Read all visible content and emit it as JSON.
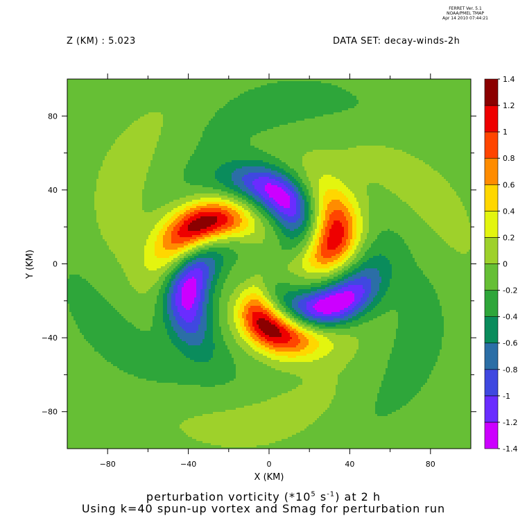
{
  "header": {
    "ferret_lines": [
      "FERRET Ver. 5.1",
      "NOAA/PMEL TMAP",
      "Apr 14 2010 07:44:21"
    ],
    "z_label": "Z (KM) : 5.023",
    "dataset_label": "DATA SET: decay-winds-2h"
  },
  "footer": {
    "title_prefix": "perturbation vorticity (*10",
    "title_exp1": "5",
    "title_mid": " s",
    "title_exp2": "-1",
    "title_suffix": ") at 2 h",
    "subtitle": "Using k=40 spun-up vortex and Smag for perturbation run"
  },
  "chart_data": {
    "type": "heatmap",
    "subtype": "filled contour",
    "xlabel": "X (KM)",
    "ylabel": "Y (KM)",
    "xlim": [
      -100,
      100
    ],
    "ylim": [
      -100,
      100
    ],
    "xticks": [
      -80,
      -40,
      0,
      40,
      80
    ],
    "yticks": [
      -80,
      -40,
      0,
      40,
      80
    ],
    "colorbar": {
      "levels": [
        -1.4,
        -1.2,
        -1,
        -0.8,
        -0.6,
        -0.4,
        -0.2,
        0,
        0.2,
        0.4,
        0.6,
        0.8,
        1,
        1.2,
        1.4
      ],
      "labels": [
        "-1.4",
        "-1.2",
        "-1",
        "-0.8",
        "-0.6",
        "-0.4",
        "-0.2",
        "0",
        "0.2",
        "0.4",
        "0.6",
        "0.8",
        "1",
        "1.2",
        "1.4"
      ],
      "colors": [
        "#cc00ff",
        "#6a2cff",
        "#3f48e0",
        "#2b6ea6",
        "#0a8c5c",
        "#2ea63a",
        "#66bf35",
        "#9ed12b",
        "#e3f50f",
        "#ffd700",
        "#ff8c00",
        "#ff4500",
        "#ee0000",
        "#8b0000"
      ]
    },
    "features": [
      {
        "kind": "maximum",
        "x": -33,
        "y": 22,
        "peak": 1.3
      },
      {
        "kind": "maximum",
        "x": 33,
        "y": 15,
        "peak": 1.1
      },
      {
        "kind": "maximum",
        "x": 0,
        "y": -35,
        "peak": 1.3
      },
      {
        "kind": "minimum",
        "x": 5,
        "y": 37,
        "peak": -1.1
      },
      {
        "kind": "minimum",
        "x": -40,
        "y": -15,
        "peak": -1.1
      },
      {
        "kind": "minimum",
        "x": 32,
        "y": -22,
        "peak": -1.2
      }
    ],
    "background_value": -0.1
  }
}
